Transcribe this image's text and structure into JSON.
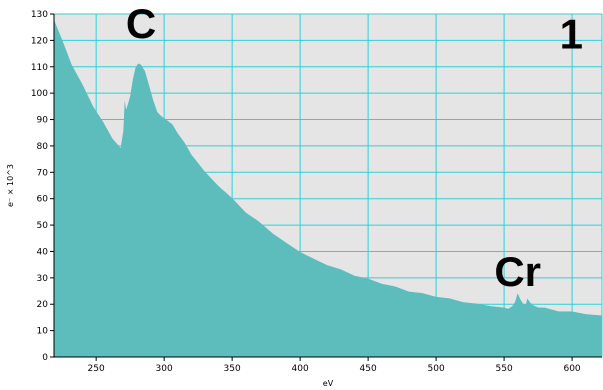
{
  "chart_data": {
    "type": "area",
    "xlabel": "eV",
    "ylabel": "e⁻ × 10^3",
    "xlim": [
      219,
      622
    ],
    "ylim": [
      0,
      130
    ],
    "xticks": [
      250,
      300,
      350,
      400,
      450,
      500,
      550,
      600
    ],
    "yticks": [
      0,
      10,
      20,
      30,
      40,
      50,
      60,
      70,
      80,
      90,
      100,
      110,
      120,
      130
    ],
    "grid": true,
    "annotations": [
      {
        "text": "C",
        "x": 283,
        "y": 121
      },
      {
        "text": "Cr",
        "x": 560,
        "y": 27
      },
      {
        "text": "1",
        "x": 608,
        "y": 117
      }
    ],
    "series": [
      {
        "x": [
          219,
          225,
          232,
          240,
          248,
          255,
          262,
          268,
          270,
          271,
          272,
          273,
          275,
          277,
          279,
          281,
          283,
          286,
          289,
          292,
          295,
          298,
          302,
          306,
          310,
          315,
          320,
          330,
          340,
          350,
          360,
          370,
          380,
          390,
          400,
          410,
          420,
          430,
          440,
          450,
          460,
          470,
          480,
          490,
          500,
          510,
          520,
          530,
          540,
          550,
          553,
          556,
          558,
          560,
          562,
          564,
          566,
          567,
          569,
          571,
          575,
          580,
          590,
          600,
          610,
          622
        ],
        "values": [
          128,
          120,
          111,
          103,
          95,
          89,
          83,
          79,
          86,
          97,
          94,
          95,
          99,
          105,
          110,
          111,
          111,
          108,
          103,
          97,
          93,
          91,
          90,
          88,
          85,
          81,
          77,
          70,
          65,
          60,
          55,
          51,
          47,
          43,
          40,
          37,
          35,
          33,
          31,
          29.5,
          28,
          26.5,
          25,
          24,
          23,
          22,
          21,
          20,
          19.5,
          18.5,
          18.5,
          19,
          21,
          24,
          22,
          20,
          20,
          22,
          21,
          19.5,
          19,
          18.5,
          17.5,
          17,
          16.5,
          15.5
        ]
      }
    ],
    "colors": {
      "plot_background": "#e5e5e5",
      "fill": "#5cbdbc",
      "grid": "#2fd0d8",
      "axis": "#000000"
    }
  }
}
